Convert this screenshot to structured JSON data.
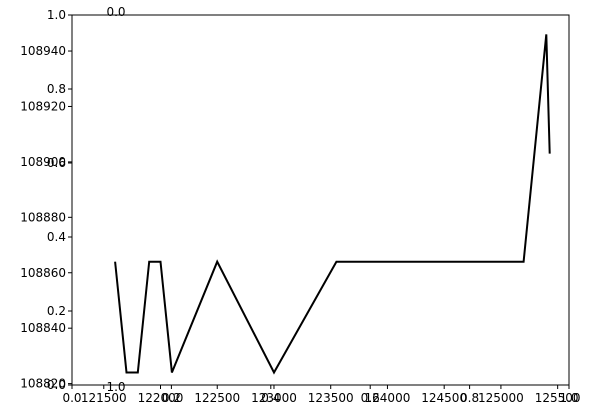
{
  "chart_data": {
    "type": "line",
    "title": "",
    "xlabel": "",
    "ylabel": "",
    "grid": false,
    "legend": "none",
    "series": [
      {
        "color": "#000000",
        "x": [
          121600,
          121700,
          121800,
          121900,
          122000,
          122100,
          122500,
          123000,
          123550,
          124000,
          124500,
          125000,
          125200,
          125400,
          125430
        ],
        "y": [
          108864,
          108824,
          108824,
          108864,
          108864,
          108824,
          108864,
          108824,
          108864,
          108864,
          108864,
          108864,
          108864,
          108946,
          108903
        ]
      }
    ],
    "axes_primary": {
      "xlim": [
        121220,
        125600
      ],
      "ylim": [
        108819.5,
        108953
      ],
      "xticks": [
        121500,
        122000,
        122500,
        123000,
        123500,
        124000,
        124500,
        125000,
        125500
      ],
      "xtick_labels": [
        "121500",
        "122000",
        "122500",
        "123000",
        "123500",
        "124000",
        "124500",
        "125000",
        "125500"
      ],
      "yticks": [
        108820,
        108840,
        108860,
        108880,
        108900,
        108920,
        108940
      ],
      "ytick_labels": [
        "108820",
        "108840",
        "108860",
        "108880",
        "108900",
        "108920",
        "108940"
      ]
    },
    "axes_overlay_unit": {
      "xlim": [
        0.0,
        1.0
      ],
      "ylim": [
        0.0,
        1.0
      ],
      "ticks": [
        0.0,
        0.2,
        0.4,
        0.6,
        0.8,
        1.0
      ],
      "tick_labels": [
        "0.0",
        "0.2",
        "0.4",
        "0.6",
        "0.8",
        "1.0"
      ]
    },
    "stray_labels": [
      "0.0",
      "1.0"
    ]
  }
}
